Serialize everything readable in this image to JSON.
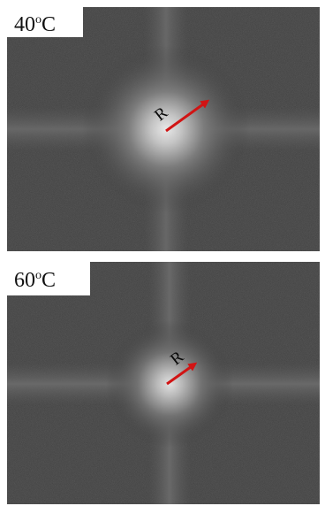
{
  "panels": [
    {
      "temperature_value": "40",
      "temperature_degree": "o",
      "temperature_unit": "C",
      "arrow_label": "R",
      "arrow_color": "#d11414"
    },
    {
      "temperature_value": "60",
      "temperature_degree": "o",
      "temperature_unit": "C",
      "arrow_label": "R",
      "arrow_color": "#d11414"
    }
  ]
}
